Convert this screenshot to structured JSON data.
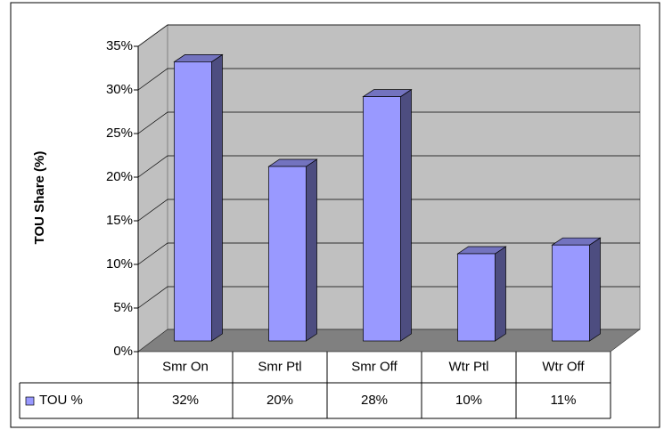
{
  "chart_data": {
    "type": "bar3d",
    "y_label": "TOU Share (%)",
    "categories": [
      "Smr On",
      "Smr Ptl",
      "Smr Off",
      "Wtr Ptl",
      "Wtr Off"
    ],
    "series": [
      {
        "name": "TOU %",
        "color": "#9999ff",
        "values": [
          32,
          20,
          28,
          10,
          11
        ],
        "value_labels": [
          "32%",
          "20%",
          "28%",
          "10%",
          "11%"
        ]
      }
    ],
    "ylim": [
      0,
      35
    ],
    "yticks": [
      {
        "value": 0,
        "label": "0%"
      },
      {
        "value": 5,
        "label": "5%"
      },
      {
        "value": 10,
        "label": "10%"
      },
      {
        "value": 15,
        "label": "15%"
      },
      {
        "value": 20,
        "label": "20%"
      },
      {
        "value": 25,
        "label": "25%"
      },
      {
        "value": 30,
        "label": "30%"
      },
      {
        "value": 35,
        "label": "35%"
      }
    ],
    "grid": true
  }
}
